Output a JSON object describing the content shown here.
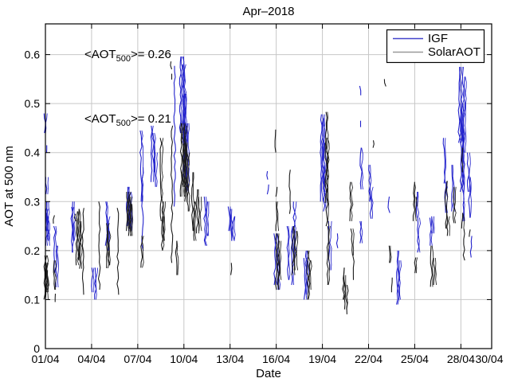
{
  "chart_data": {
    "type": "scatter",
    "title": "Apr–2018",
    "xlabel": "Date",
    "ylabel": "AOT at 500 nm",
    "xlim": [
      "01/04",
      "30/04"
    ],
    "ylim": [
      0,
      0.66
    ],
    "grid": true,
    "grid_color": "#c7c7c7",
    "x_ticks": [
      {
        "day": 1,
        "label": "01/04"
      },
      {
        "day": 4,
        "label": "04/04"
      },
      {
        "day": 7,
        "label": "07/04"
      },
      {
        "day": 10,
        "label": "10/04"
      },
      {
        "day": 13,
        "label": "13/04"
      },
      {
        "day": 16,
        "label": "16/04"
      },
      {
        "day": 19,
        "label": "19/04"
      },
      {
        "day": 22,
        "label": "22/04"
      },
      {
        "day": 25,
        "label": "25/04"
      },
      {
        "day": 28,
        "label": "28/04"
      },
      {
        "day": 30,
        "label": "30/04"
      }
    ],
    "y_ticks": [
      {
        "value": 0,
        "label": "0"
      },
      {
        "value": 0.1,
        "label": "0.1"
      },
      {
        "value": 0.2,
        "label": "0.2"
      },
      {
        "value": 0.3,
        "label": "0.3"
      },
      {
        "value": 0.4,
        "label": "0.4"
      },
      {
        "value": 0.5,
        "label": "0.5"
      },
      {
        "value": 0.6,
        "label": "0.6"
      }
    ],
    "legend": {
      "position": "top-right",
      "items": [
        {
          "label": "IGF",
          "color": "#4444cc"
        },
        {
          "label": "SolarAOT",
          "color": "#999999"
        }
      ]
    },
    "annotations": [
      {
        "prefix": "<AOT",
        "sub": "500",
        "suffix": ">= 0.26",
        "color": "#2222cc",
        "series": "IGF"
      },
      {
        "prefix": "<AOT",
        "sub": "500",
        "suffix": ">= 0.21",
        "color": "#1a1a1a",
        "series": "SolarAOT"
      }
    ],
    "series": [
      {
        "name": "IGF",
        "color": "#2222cc",
        "mean_aot_500": 0.26,
        "segments": [
          [
            1.02,
            0.44,
            0.48,
            2
          ],
          [
            1.05,
            0.4,
            0.415,
            1
          ],
          [
            1.08,
            0.24,
            0.285,
            2
          ],
          [
            1.1,
            0.315,
            0.35,
            2
          ],
          [
            1.13,
            0.21,
            0.3,
            3
          ],
          [
            1.18,
            0.22,
            0.27,
            2
          ],
          [
            1.65,
            0.155,
            0.25,
            2
          ],
          [
            1.75,
            0.125,
            0.21,
            2
          ],
          [
            2.75,
            0.196,
            0.289,
            2
          ],
          [
            2.85,
            0.22,
            0.3,
            2
          ],
          [
            4.1,
            0.115,
            0.165,
            2
          ],
          [
            4.3,
            0.1,
            0.165,
            2
          ],
          [
            5.0,
            0.21,
            0.3,
            2
          ],
          [
            5.1,
            0.2,
            0.27,
            2
          ],
          [
            6.4,
            0.25,
            0.33,
            3
          ],
          [
            6.52,
            0.24,
            0.32,
            3
          ],
          [
            7.25,
            0.3,
            0.445,
            2
          ],
          [
            7.32,
            0.2,
            0.37,
            1
          ],
          [
            7.95,
            0.34,
            0.455,
            2
          ],
          [
            8.08,
            0.36,
            0.44,
            2
          ],
          [
            8.18,
            0.33,
            0.4,
            2
          ],
          [
            9.4,
            0.29,
            0.577,
            1
          ],
          [
            9.9,
            0.44,
            0.596,
            4
          ],
          [
            10.0,
            0.42,
            0.58,
            3
          ],
          [
            10.1,
            0.35,
            0.52,
            3
          ],
          [
            10.22,
            0.32,
            0.46,
            3
          ],
          [
            11.4,
            0.21,
            0.31,
            2
          ],
          [
            11.55,
            0.23,
            0.3,
            2
          ],
          [
            12.98,
            0.24,
            0.29,
            2
          ],
          [
            13.1,
            0.22,
            0.285,
            2
          ],
          [
            13.28,
            0.22,
            0.27,
            2
          ],
          [
            15.4,
            0.345,
            0.362,
            1
          ],
          [
            15.45,
            0.315,
            0.335,
            1
          ],
          [
            16.0,
            0.13,
            0.235,
            3
          ],
          [
            16.15,
            0.12,
            0.2,
            2
          ],
          [
            16.8,
            0.14,
            0.25,
            2
          ],
          [
            17.05,
            0.13,
            0.25,
            2
          ],
          [
            17.2,
            0.18,
            0.3,
            2
          ],
          [
            17.9,
            0.1,
            0.185,
            2
          ],
          [
            18.0,
            0.11,
            0.2,
            2
          ],
          [
            19.0,
            0.3,
            0.478,
            3
          ],
          [
            19.08,
            0.32,
            0.47,
            2
          ],
          [
            19.16,
            0.28,
            0.42,
            2
          ],
          [
            19.5,
            0.16,
            0.26,
            2
          ],
          [
            19.95,
            0.205,
            0.235,
            1
          ],
          [
            21.45,
            0.517,
            0.536,
            1
          ],
          [
            21.48,
            0.452,
            0.465,
            1
          ],
          [
            21.55,
            0.325,
            0.41,
            2
          ],
          [
            21.52,
            0.215,
            0.26,
            2
          ],
          [
            22.1,
            0.3,
            0.375,
            2
          ],
          [
            22.2,
            0.265,
            0.33,
            2
          ],
          [
            23.32,
            0.277,
            0.31,
            1
          ],
          [
            23.9,
            0.09,
            0.2,
            2
          ],
          [
            24.02,
            0.1,
            0.18,
            2
          ],
          [
            25.18,
            0.267,
            0.32,
            2
          ],
          [
            25.26,
            0.196,
            0.267,
            2
          ],
          [
            26.08,
            0.21,
            0.267,
            2
          ],
          [
            26.2,
            0.235,
            0.27,
            2
          ],
          [
            26.95,
            0.337,
            0.43,
            2
          ],
          [
            27.03,
            0.277,
            0.34,
            2
          ],
          [
            27.48,
            0.28,
            0.375,
            2
          ],
          [
            28.02,
            0.42,
            0.575,
            4
          ],
          [
            28.1,
            0.32,
            0.5,
            3
          ],
          [
            28.18,
            0.26,
            0.45,
            2
          ],
          [
            28.26,
            0.4,
            0.555,
            2
          ],
          [
            28.52,
            0.32,
            0.4,
            2
          ],
          [
            28.6,
            0.267,
            0.35,
            2
          ],
          [
            28.68,
            0.186,
            0.23,
            1
          ]
        ]
      },
      {
        "name": "SolarAOT",
        "color": "#1c1c1c",
        "mean_aot_500": 0.21,
        "segments": [
          [
            1.04,
            0.1,
            0.19,
            3
          ],
          [
            1.1,
            0.115,
            0.175,
            2
          ],
          [
            1.14,
            0.12,
            0.16,
            2
          ],
          [
            1.55,
            0.255,
            0.272,
            1
          ],
          [
            1.6,
            0.12,
            0.18,
            2
          ],
          [
            1.68,
            0.095,
            0.112,
            1
          ],
          [
            2.92,
            0.26,
            0.275,
            1
          ],
          [
            3.08,
            0.17,
            0.28,
            2
          ],
          [
            3.2,
            0.18,
            0.285,
            2
          ],
          [
            3.3,
            0.163,
            0.26,
            2
          ],
          [
            3.45,
            0.11,
            0.287,
            1
          ],
          [
            4.5,
            0.12,
            0.3,
            1
          ],
          [
            5.05,
            0.164,
            0.256,
            2
          ],
          [
            5.15,
            0.17,
            0.24,
            2
          ],
          [
            5.7,
            0.11,
            0.287,
            1
          ],
          [
            6.4,
            0.24,
            0.32,
            3
          ],
          [
            6.5,
            0.23,
            0.31,
            3
          ],
          [
            6.58,
            0.23,
            0.295,
            2
          ],
          [
            7.3,
            0.165,
            0.23,
            2
          ],
          [
            8.55,
            0.26,
            0.43,
            2
          ],
          [
            8.62,
            0.2,
            0.27,
            2
          ],
          [
            8.7,
            0.22,
            0.3,
            2
          ],
          [
            9.18,
            0.57,
            0.586,
            1
          ],
          [
            9.21,
            0.549,
            0.561,
            1
          ],
          [
            9.22,
            0.175,
            0.455,
            1
          ],
          [
            9.55,
            0.15,
            0.22,
            2
          ],
          [
            9.95,
            0.31,
            0.46,
            4
          ],
          [
            10.05,
            0.33,
            0.455,
            3
          ],
          [
            10.15,
            0.3,
            0.42,
            3
          ],
          [
            10.28,
            0.28,
            0.4,
            2
          ],
          [
            10.6,
            0.24,
            0.36,
            2
          ],
          [
            10.72,
            0.22,
            0.3,
            2
          ],
          [
            10.92,
            0.235,
            0.325,
            2
          ],
          [
            11.05,
            0.24,
            0.31,
            2
          ],
          [
            13.05,
            0.15,
            0.175,
            1
          ],
          [
            15.95,
            0.4,
            0.447,
            1
          ],
          [
            16.0,
            0.31,
            0.33,
            1
          ],
          [
            16.05,
            0.24,
            0.3,
            2
          ],
          [
            16.1,
            0.12,
            0.235,
            3
          ],
          [
            16.22,
            0.14,
            0.22,
            2
          ],
          [
            16.88,
            0.275,
            0.365,
            1
          ],
          [
            17.12,
            0.15,
            0.25,
            2
          ],
          [
            17.3,
            0.16,
            0.24,
            2
          ],
          [
            18.1,
            0.1,
            0.2,
            2
          ],
          [
            18.22,
            0.12,
            0.18,
            2
          ],
          [
            19.28,
            0.297,
            0.483,
            2
          ],
          [
            19.34,
            0.25,
            0.43,
            2
          ],
          [
            19.4,
            0.13,
            0.25,
            2
          ],
          [
            20.4,
            0.1,
            0.165,
            2
          ],
          [
            20.5,
            0.08,
            0.15,
            2
          ],
          [
            20.62,
            0.07,
            0.13,
            1
          ],
          [
            20.88,
            0.26,
            0.34,
            2
          ],
          [
            20.95,
            0.19,
            0.245,
            2
          ],
          [
            21.02,
            0.14,
            0.19,
            1
          ],
          [
            22.3,
            0.41,
            0.425,
            1
          ],
          [
            23.08,
            0.535,
            0.55,
            1
          ],
          [
            23.4,
            0.175,
            0.21,
            2
          ],
          [
            23.5,
            0.115,
            0.145,
            1
          ],
          [
            25.0,
            0.26,
            0.34,
            2
          ],
          [
            25.08,
            0.154,
            0.186,
            2
          ],
          [
            25.14,
            0.29,
            0.31,
            1
          ],
          [
            26.12,
            0.126,
            0.21,
            2
          ],
          [
            26.3,
            0.13,
            0.185,
            2
          ],
          [
            27.08,
            0.245,
            0.342,
            2
          ],
          [
            27.18,
            0.23,
            0.27,
            2
          ],
          [
            27.58,
            0.256,
            0.33,
            2
          ],
          [
            28.06,
            0.36,
            0.41,
            1
          ],
          [
            28.12,
            0.245,
            0.277,
            2
          ],
          [
            28.2,
            0.18,
            0.245,
            1
          ],
          [
            28.6,
            0.228,
            0.243,
            1
          ]
        ]
      }
    ]
  }
}
